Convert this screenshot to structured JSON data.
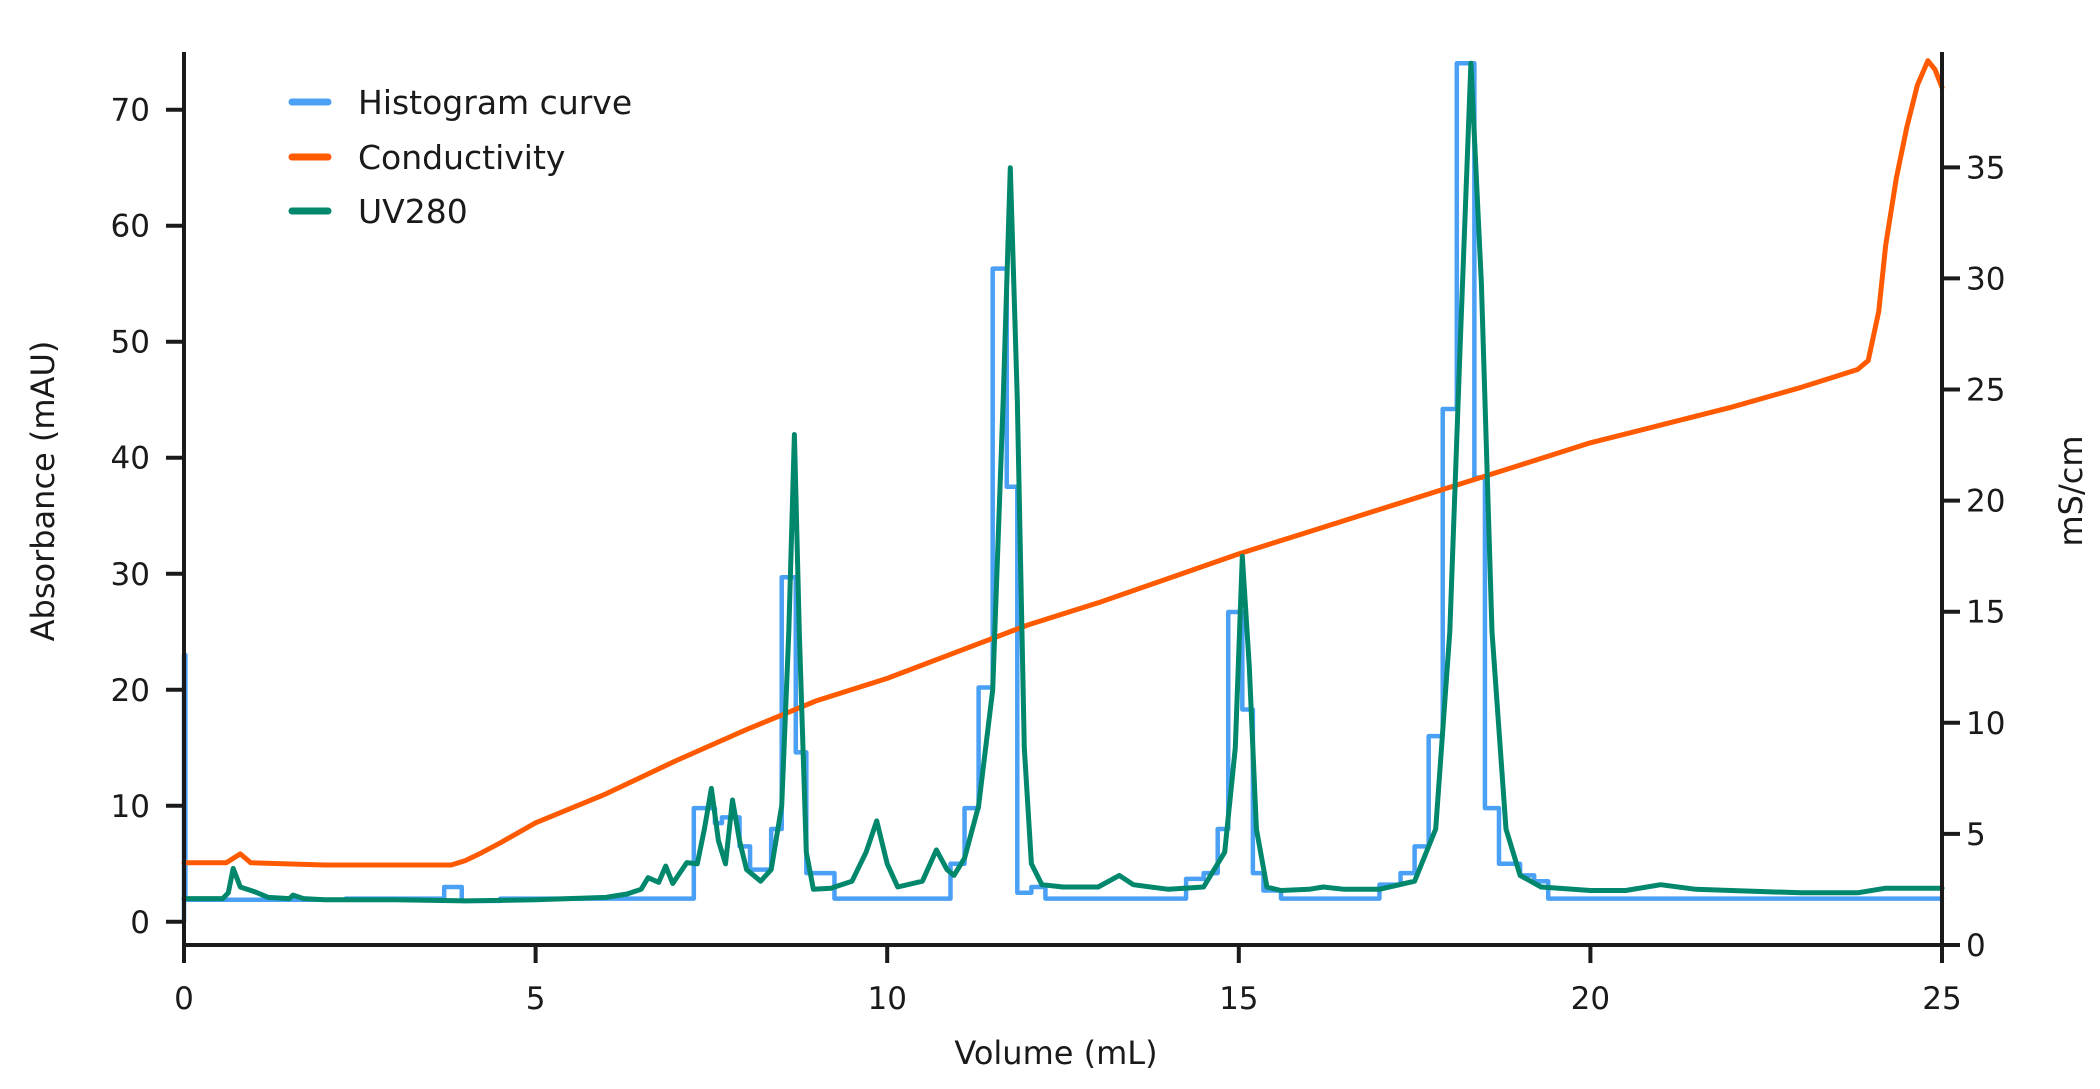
{
  "chart_data": {
    "type": "line",
    "xlabel": "Volume (mL)",
    "ylabel": "Absorbance (mAU)",
    "y2label": "mS/cm",
    "xlim": [
      0,
      25
    ],
    "ylim": [
      -2,
      74.8
    ],
    "y2lim": [
      0,
      40.1
    ],
    "xticks": [
      0,
      5,
      10,
      15,
      20,
      25
    ],
    "yticks": [
      0,
      10,
      20,
      30,
      40,
      50,
      60,
      70
    ],
    "y2ticks": [
      0,
      5,
      10,
      15,
      20,
      25,
      30,
      35
    ],
    "grid": false,
    "legend_placement": "top-left",
    "series": [
      {
        "name": "Histogram curve",
        "axis": "left",
        "style": "step",
        "color": "#4aa0f5",
        "points": [
          [
            0,
            0
          ],
          [
            0,
            23
          ],
          [
            0.02,
            23
          ],
          [
            0.02,
            1.9
          ],
          [
            2.3,
            2.0
          ],
          [
            3.7,
            3.0
          ],
          [
            3.95,
            1.8
          ],
          [
            4.5,
            2.0
          ],
          [
            7.25,
            9.8
          ],
          [
            7.55,
            8.5
          ],
          [
            7.65,
            9.0
          ],
          [
            7.9,
            6.5
          ],
          [
            8.05,
            4.5
          ],
          [
            8.35,
            8.0
          ],
          [
            8.5,
            29.7
          ],
          [
            8.7,
            14.6
          ],
          [
            8.85,
            4.2
          ],
          [
            9.25,
            2.0
          ],
          [
            10.9,
            5.0
          ],
          [
            11.1,
            9.8
          ],
          [
            11.3,
            20.2
          ],
          [
            11.5,
            56.3
          ],
          [
            11.7,
            37.5
          ],
          [
            11.85,
            2.5
          ],
          [
            12.05,
            3.0
          ],
          [
            12.25,
            2.0
          ],
          [
            14.25,
            3.7
          ],
          [
            14.5,
            4.2
          ],
          [
            14.7,
            8.0
          ],
          [
            14.85,
            26.7
          ],
          [
            15.05,
            18.3
          ],
          [
            15.2,
            4.2
          ],
          [
            15.35,
            2.7
          ],
          [
            15.6,
            2.0
          ],
          [
            17.0,
            3.2
          ],
          [
            17.3,
            4.2
          ],
          [
            17.5,
            6.5
          ],
          [
            17.7,
            16.0
          ],
          [
            17.9,
            44.2
          ],
          [
            18.1,
            74.0
          ],
          [
            18.35,
            38.3
          ],
          [
            18.5,
            9.8
          ],
          [
            18.7,
            5.0
          ],
          [
            19.0,
            4.0
          ],
          [
            19.2,
            3.5
          ],
          [
            19.4,
            2.0
          ],
          [
            25,
            2.0
          ]
        ]
      },
      {
        "name": "Conductivity",
        "axis": "right",
        "style": "line",
        "color": "#ff5a00",
        "points": [
          [
            0,
            3.7
          ],
          [
            0.6,
            3.7
          ],
          [
            0.8,
            4.1
          ],
          [
            0.95,
            3.7
          ],
          [
            2,
            3.6
          ],
          [
            3.8,
            3.6
          ],
          [
            4.0,
            3.8
          ],
          [
            4.2,
            4.1
          ],
          [
            4.5,
            4.6
          ],
          [
            5,
            5.5
          ],
          [
            6,
            6.8
          ],
          [
            7,
            8.3
          ],
          [
            8,
            9.7
          ],
          [
            9,
            11.0
          ],
          [
            10,
            12.0
          ],
          [
            11,
            13.2
          ],
          [
            12,
            14.4
          ],
          [
            13,
            15.4
          ],
          [
            14,
            16.5
          ],
          [
            15,
            17.6
          ],
          [
            16,
            18.6
          ],
          [
            17,
            19.6
          ],
          [
            18,
            20.6
          ],
          [
            19,
            21.6
          ],
          [
            20,
            22.6
          ],
          [
            21,
            23.4
          ],
          [
            22,
            24.2
          ],
          [
            23,
            25.1
          ],
          [
            23.8,
            25.9
          ],
          [
            23.95,
            26.3
          ],
          [
            24.1,
            28.5
          ],
          [
            24.2,
            31.5
          ],
          [
            24.35,
            34.5
          ],
          [
            24.5,
            36.8
          ],
          [
            24.65,
            38.7
          ],
          [
            24.8,
            39.8
          ],
          [
            24.9,
            39.4
          ],
          [
            25,
            38.6
          ]
        ]
      },
      {
        "name": "UV280",
        "axis": "left",
        "style": "line",
        "color": "#00876c",
        "points": [
          [
            0,
            2.0
          ],
          [
            0.55,
            2.0
          ],
          [
            0.63,
            2.5
          ],
          [
            0.7,
            4.6
          ],
          [
            0.8,
            3.0
          ],
          [
            1.0,
            2.6
          ],
          [
            1.2,
            2.1
          ],
          [
            1.5,
            2.0
          ],
          [
            1.55,
            2.3
          ],
          [
            1.7,
            2.0
          ],
          [
            2,
            1.9
          ],
          [
            3,
            1.9
          ],
          [
            4,
            1.8
          ],
          [
            5,
            1.9
          ],
          [
            6,
            2.1
          ],
          [
            6.3,
            2.4
          ],
          [
            6.5,
            2.8
          ],
          [
            6.6,
            3.8
          ],
          [
            6.75,
            3.4
          ],
          [
            6.85,
            4.8
          ],
          [
            6.95,
            3.3
          ],
          [
            7.15,
            5.1
          ],
          [
            7.3,
            5.0
          ],
          [
            7.4,
            8.0
          ],
          [
            7.5,
            11.5
          ],
          [
            7.6,
            7.0
          ],
          [
            7.7,
            5.0
          ],
          [
            7.8,
            10.5
          ],
          [
            7.9,
            7.0
          ],
          [
            8.0,
            4.5
          ],
          [
            8.2,
            3.5
          ],
          [
            8.35,
            4.5
          ],
          [
            8.5,
            10.0
          ],
          [
            8.6,
            25.0
          ],
          [
            8.68,
            42.0
          ],
          [
            8.75,
            25.0
          ],
          [
            8.85,
            6.0
          ],
          [
            8.95,
            2.8
          ],
          [
            9.2,
            2.9
          ],
          [
            9.5,
            3.5
          ],
          [
            9.7,
            6.0
          ],
          [
            9.85,
            8.7
          ],
          [
            10.0,
            5.0
          ],
          [
            10.15,
            3.0
          ],
          [
            10.5,
            3.5
          ],
          [
            10.7,
            6.2
          ],
          [
            10.85,
            4.5
          ],
          [
            10.95,
            4.0
          ],
          [
            11.1,
            5.5
          ],
          [
            11.3,
            10.0
          ],
          [
            11.5,
            20.0
          ],
          [
            11.65,
            45.0
          ],
          [
            11.75,
            65.0
          ],
          [
            11.85,
            45.0
          ],
          [
            11.95,
            15.0
          ],
          [
            12.05,
            5.0
          ],
          [
            12.2,
            3.2
          ],
          [
            12.5,
            3.0
          ],
          [
            13,
            3.0
          ],
          [
            13.3,
            4.0
          ],
          [
            13.5,
            3.2
          ],
          [
            14,
            2.8
          ],
          [
            14.5,
            3.0
          ],
          [
            14.8,
            6.0
          ],
          [
            14.95,
            15.0
          ],
          [
            15.05,
            31.5
          ],
          [
            15.15,
            22.0
          ],
          [
            15.25,
            8.0
          ],
          [
            15.4,
            3.0
          ],
          [
            15.6,
            2.7
          ],
          [
            16,
            2.8
          ],
          [
            16.2,
            3.0
          ],
          [
            16.5,
            2.8
          ],
          [
            17,
            2.8
          ],
          [
            17.5,
            3.5
          ],
          [
            17.8,
            8.0
          ],
          [
            18.0,
            25.0
          ],
          [
            18.15,
            50.0
          ],
          [
            18.3,
            74.0
          ],
          [
            18.45,
            55.0
          ],
          [
            18.6,
            25.0
          ],
          [
            18.8,
            8.0
          ],
          [
            19,
            4.0
          ],
          [
            19.3,
            3.0
          ],
          [
            20,
            2.7
          ],
          [
            20.5,
            2.7
          ],
          [
            21,
            3.2
          ],
          [
            21.5,
            2.8
          ],
          [
            22,
            2.7
          ],
          [
            23,
            2.5
          ],
          [
            23.8,
            2.5
          ],
          [
            24.2,
            2.9
          ],
          [
            25,
            2.9
          ]
        ]
      }
    ]
  }
}
